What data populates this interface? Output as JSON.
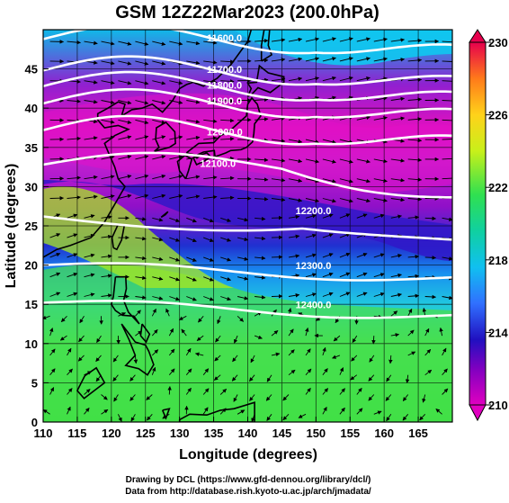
{
  "title": "GSM 12Z22Mar2023 (200.0hPa)",
  "x_axis": {
    "label": "Longitude (degrees)",
    "ticks": [
      "110",
      "115",
      "120",
      "125",
      "130",
      "135",
      "140",
      "145",
      "150",
      "155",
      "160",
      "165"
    ]
  },
  "y_axis": {
    "label": "Latitude (degrees)",
    "ticks": [
      "0",
      "5",
      "10",
      "15",
      "20",
      "25",
      "30",
      "35",
      "40",
      "45"
    ]
  },
  "colorbar": {
    "ticks": [
      "230",
      "226",
      "222",
      "218",
      "214",
      "210"
    ],
    "colors": [
      "#e6004d",
      "#ff7a1a",
      "#ffd21a",
      "#c8f01a",
      "#30e050",
      "#10d0a0",
      "#10c0f0",
      "#3070ff",
      "#2010c0",
      "#8000c0",
      "#e000c0"
    ]
  },
  "contour_labels": [
    "11600.0",
    "11700.0",
    "11800.0",
    "11900.0",
    "12000.0",
    "12100.0",
    "12200.0",
    "12300.0",
    "12400.0"
  ],
  "credits": {
    "line1": "Drawing by DCL (https://www.gfd-dennou.org/library/dcl/)",
    "line2": "Data from http://database.rish.kyoto-u.ac.jp/arch/jmadata/"
  },
  "chart_data": {
    "type": "heatmap",
    "title": "GSM 12Z22Mar2023 (200.0hPa)",
    "xlabel": "Longitude (degrees)",
    "ylabel": "Latitude (degrees)",
    "xlim": [
      110,
      170
    ],
    "ylim": [
      0,
      50
    ],
    "colorbar_range": [
      210,
      230
    ],
    "geopotential_height_contours": [
      {
        "level": 11600,
        "label_lon": 134,
        "label_lat": 48.5
      },
      {
        "level": 11700,
        "label_lon": 134,
        "label_lat": 44.5
      },
      {
        "level": 11800,
        "label_lon": 134,
        "label_lat": 42.5
      },
      {
        "level": 11900,
        "label_lon": 134,
        "label_lat": 40.5
      },
      {
        "level": 12000,
        "label_lon": 134,
        "label_lat": 36.5
      },
      {
        "level": 12100,
        "label_lon": 133,
        "label_lat": 32.5
      },
      {
        "level": 12200,
        "label_lon": 147,
        "label_lat": 26.5
      },
      {
        "level": 12300,
        "label_lon": 147,
        "label_lat": 19.5
      },
      {
        "level": 12400,
        "label_lon": 147,
        "label_lat": 14.5
      }
    ]
  }
}
